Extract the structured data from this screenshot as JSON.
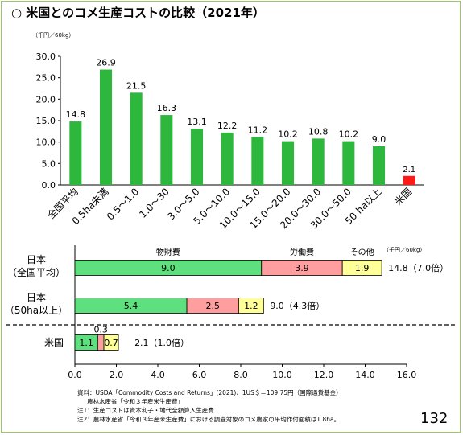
{
  "title": "○ 米国とのコメ生産コストの比較（2021年）",
  "page_number": "132",
  "colors": {
    "green": "#5ee07f",
    "red": "#ff1a1a",
    "pink": "#ff9e9e",
    "yellow": "#ffff99",
    "frame": "#9dc46a"
  },
  "chart_data": [
    {
      "type": "bar",
      "unit_label": "（千円／60kg）",
      "ylim": [
        0,
        30
      ],
      "yticks": [
        "0.0",
        "5.0",
        "10.0",
        "15.0",
        "20.0",
        "25.0",
        "30.0"
      ],
      "categories": [
        "全国平均",
        "0.5ha未満",
        "0.5～1.0",
        "1.0～30",
        "3.0～5.0",
        "5.0～10.0",
        "10.0～15.0",
        "15.0～20.0",
        "20.0～30.0",
        "30.0～50.0",
        "50 ha以上",
        "米国"
      ],
      "values": [
        14.8,
        26.9,
        21.5,
        16.3,
        13.1,
        12.2,
        11.2,
        10.2,
        10.8,
        10.2,
        9.0,
        2.1
      ],
      "value_labels": [
        "14.8",
        "26.9",
        "21.5",
        "16.3",
        "13.1",
        "12.2",
        "11.2",
        "10.2",
        "10.8",
        "10.2",
        "9.0",
        "2.1"
      ],
      "bar_colors": [
        "#2db83d",
        "#2db83d",
        "#2db83d",
        "#2db83d",
        "#2db83d",
        "#2db83d",
        "#2db83d",
        "#2db83d",
        "#2db83d",
        "#2db83d",
        "#2db83d",
        "#ff1a1a"
      ]
    },
    {
      "type": "bar",
      "orientation": "horizontal",
      "stacked": true,
      "unit_label": "（千円／60kg）",
      "xlim": [
        0,
        16
      ],
      "xticks": [
        "0.0",
        "2.0",
        "4.0",
        "6.0",
        "8.0",
        "10.0",
        "12.0",
        "14.0",
        "16.0"
      ],
      "series_labels": [
        "物財費",
        "労働費",
        "その他"
      ],
      "rows": [
        {
          "label_line1": "日本",
          "label_line2": "（全国平均）",
          "values": [
            9.0,
            3.9,
            1.9
          ],
          "segment_labels": [
            "9.0",
            "3.9",
            "1.9"
          ],
          "total_label": "14.8（7.0倍）"
        },
        {
          "label_line1": "日本",
          "label_line2": "（50ha以上）",
          "values": [
            5.4,
            2.5,
            1.2
          ],
          "segment_labels": [
            "5.4",
            "2.5",
            "1.2"
          ],
          "total_label": "9.0（4.3倍）"
        },
        {
          "label_line1": "米国",
          "label_line2": "",
          "values": [
            1.1,
            0.3,
            0.7
          ],
          "segment_labels": [
            "1.1",
            "0.3",
            "0.7"
          ],
          "total_label": "2.1（1.0倍）"
        }
      ]
    }
  ],
  "notes": [
    "資料：USDA「Commodity Costs and Returns」(2021)、1US＄＝109.75円（国際通貨基金）",
    "農林水産省「令和３年産米生産費」",
    "注1：生産コストは資本利子・地代全額算入生産費",
    "注2：農林水産省「令和３年産米生産費」における調査対象のコメ農家の平均作付面積は1.8ha。"
  ]
}
